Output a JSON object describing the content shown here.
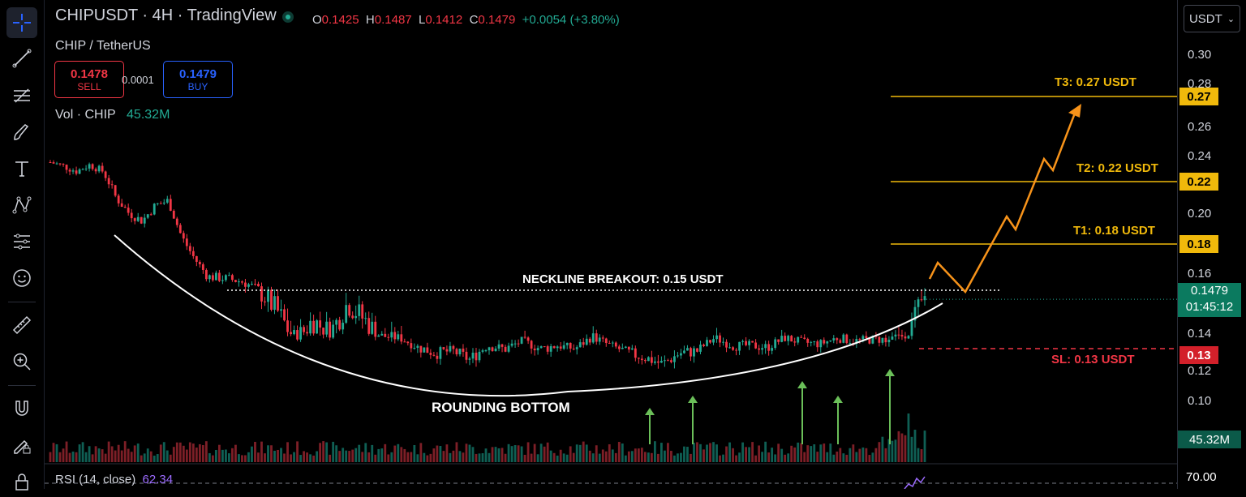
{
  "header": {
    "title": "CHIPUSDT · 4H · TradingView",
    "ohlc": {
      "o_label": "O",
      "o": "0.1425",
      "h_label": "H",
      "h": "0.1487",
      "l_label": "L",
      "l": "0.1412",
      "c_label": "C",
      "c": "0.1479",
      "change": "+0.0054 (+3.80%)"
    },
    "pair_name": "CHIP / TetherUS",
    "sell": {
      "price": "0.1478",
      "label": "SELL"
    },
    "spread": "0.0001",
    "buy": {
      "price": "0.1479",
      "label": "BUY"
    },
    "volume": {
      "label": "Vol · CHIP",
      "value": "45.32M"
    },
    "rsi": {
      "label": "RSI (14, close)",
      "value": "62.34"
    }
  },
  "price_axis": {
    "currency": "USDT",
    "levels": [
      "0.30",
      "0.28",
      "0.26",
      "0.24",
      "0.20",
      "0.16",
      "0.14",
      "0.12",
      "0.10"
    ],
    "tags": {
      "t3": "0.27",
      "t2": "0.22",
      "t1": "0.18",
      "current_price": "0.1479",
      "countdown": "01:45:12",
      "sl": "0.13",
      "volume": "45.32M",
      "rsi_level": "70.00"
    }
  },
  "annotations": {
    "t3": "T3: 0.27 USDT",
    "t2": "T2: 0.22 USDT",
    "t1": "T1: 0.18 USDT",
    "neckline": "NECKLINE BREAKOUT: 0.15 USDT",
    "sl": "SL: 0.13 USDT",
    "pattern": "ROUNDING BOTTOM"
  },
  "colors": {
    "up": "#22ab94",
    "down": "#f23645",
    "target": "#f0b90b",
    "projection": "#f7931a",
    "arrow": "#6bbf59",
    "price_tag": "#0b7a5f"
  },
  "toolbar_icons": [
    "crosshair-icon",
    "trendline-icon",
    "fib-icon",
    "brush-icon",
    "text-icon",
    "pattern-icon",
    "prediction-icon",
    "emoji-icon",
    "ruler-icon",
    "zoom-in-icon",
    "magnet-icon",
    "lock-drawing-icon",
    "lock-icon"
  ],
  "chart_data": {
    "type": "candlestick",
    "price_levels": {
      "neckline": 0.15,
      "t1": 0.18,
      "t2": 0.22,
      "t3": 0.27,
      "sl": 0.13
    },
    "last": {
      "open": 0.1425,
      "high": 0.1487,
      "low": 0.1412,
      "close": 0.1479
    },
    "path_x": [
      0.0,
      0.015,
      0.03,
      0.045,
      0.06,
      0.075,
      0.09,
      0.105,
      0.12,
      0.135,
      0.15,
      0.165,
      0.18,
      0.2,
      0.22,
      0.24,
      0.26,
      0.28,
      0.3,
      0.32,
      0.34,
      0.36,
      0.38,
      0.4,
      0.42,
      0.44,
      0.46,
      0.48,
      0.5,
      0.52,
      0.54,
      0.56,
      0.58,
      0.6,
      0.62,
      0.64,
      0.66,
      0.68,
      0.7,
      0.72,
      0.74,
      0.76,
      0.78,
      0.8,
      0.82,
      0.84,
      0.86,
      0.88,
      0.9,
      0.92,
      0.94,
      0.96,
      0.98,
      1.0
    ],
    "path_close": [
      0.235,
      0.232,
      0.228,
      0.233,
      0.228,
      0.21,
      0.2,
      0.195,
      0.205,
      0.208,
      0.185,
      0.17,
      0.158,
      0.157,
      0.155,
      0.15,
      0.145,
      0.138,
      0.143,
      0.14,
      0.147,
      0.143,
      0.138,
      0.137,
      0.131,
      0.128,
      0.129,
      0.125,
      0.132,
      0.13,
      0.135,
      0.13,
      0.132,
      0.13,
      0.138,
      0.132,
      0.128,
      0.126,
      0.123,
      0.128,
      0.129,
      0.137,
      0.132,
      0.132,
      0.131,
      0.137,
      0.134,
      0.133,
      0.137,
      0.135,
      0.136,
      0.136,
      0.14,
      0.148
    ]
  }
}
